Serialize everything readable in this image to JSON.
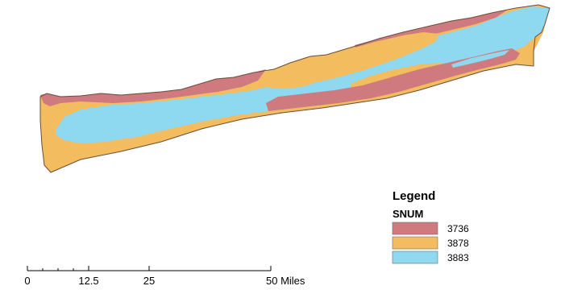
{
  "map": {
    "colors": {
      "class_3736": "#cf7a7e",
      "class_3878": "#f2bc5f",
      "class_3883": "#8ed8f0",
      "outline": "#6b4a3a"
    }
  },
  "legend": {
    "title": "Legend",
    "field": "SNUM",
    "items": [
      {
        "label": "3736",
        "color": "#cf7a7e"
      },
      {
        "label": "3878",
        "color": "#f2bc5f"
      },
      {
        "label": "3883",
        "color": "#8ed8f0"
      }
    ]
  },
  "scale_bar": {
    "ticks": [
      "0",
      "12.5",
      "25",
      "50 Miles"
    ]
  }
}
